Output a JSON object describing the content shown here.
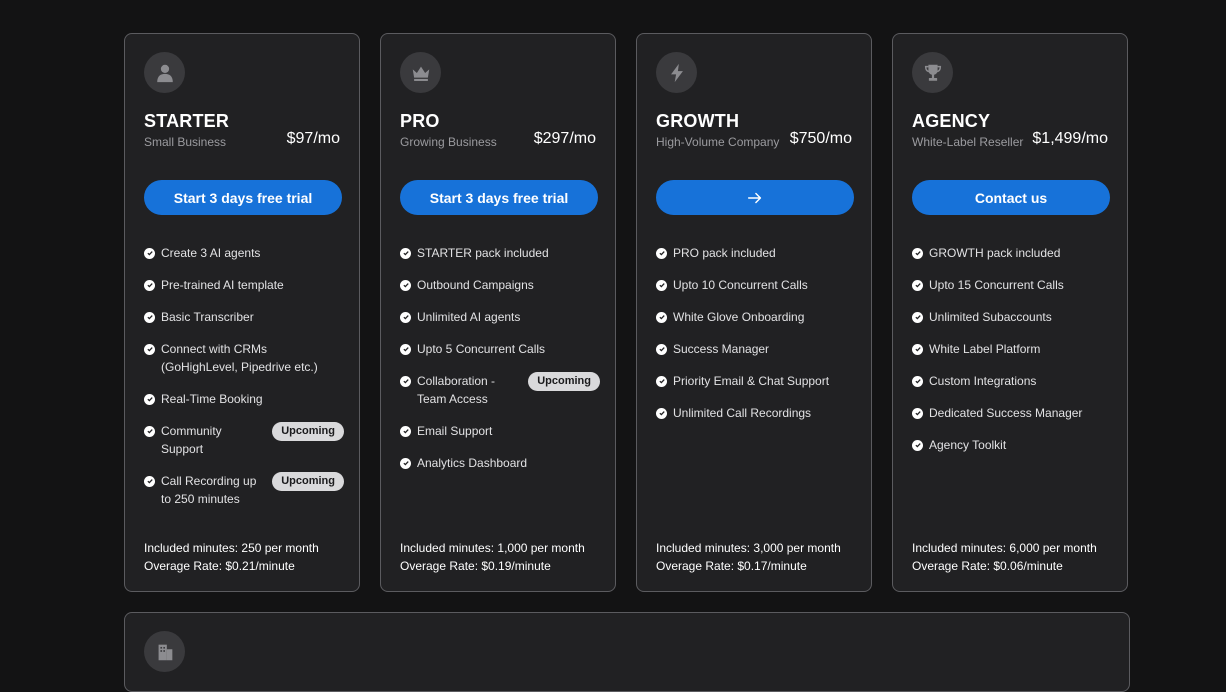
{
  "plans": [
    {
      "icon": "user-icon",
      "name": "STARTER",
      "subtitle": "Small Business",
      "price": "$97/mo",
      "cta_label": "Start 3 days free trial",
      "features": [
        {
          "text": "Create 3 AI agents"
        },
        {
          "text": "Pre-trained AI template"
        },
        {
          "text": "Basic Transcriber"
        },
        {
          "text": "Connect with CRMs (GoHighLevel, Pipedrive etc.)"
        },
        {
          "text": "Real-Time Booking"
        },
        {
          "text": "Community Support",
          "badge": "Upcoming"
        },
        {
          "text": "Call Recording up to 250 minutes",
          "badge": "Upcoming"
        }
      ],
      "included_minutes": "Included minutes: 250 per month",
      "overage_rate": "Overage Rate: $0.21/minute"
    },
    {
      "icon": "crown-icon",
      "name": "PRO",
      "subtitle": "Growing Business",
      "price": "$297/mo",
      "cta_label": "Start 3 days free trial",
      "features": [
        {
          "text": "STARTER pack included"
        },
        {
          "text": "Outbound Campaigns"
        },
        {
          "text": "Unlimited AI agents"
        },
        {
          "text": "Upto 5 Concurrent Calls"
        },
        {
          "text": "Collaboration - Team Access",
          "badge": "Upcoming"
        },
        {
          "text": "Email Support"
        },
        {
          "text": "Analytics Dashboard"
        }
      ],
      "included_minutes": "Included minutes: 1,000 per month",
      "overage_rate": "Overage Rate: $0.19/minute"
    },
    {
      "icon": "lightning-icon",
      "name": "GROWTH",
      "subtitle": "High-Volume Company",
      "price": "$750/mo",
      "cta_label": "",
      "cta_icon": "arrow-right-icon",
      "features": [
        {
          "text": "PRO pack included"
        },
        {
          "text": "Upto 10 Concurrent Calls"
        },
        {
          "text": "White Glove Onboarding"
        },
        {
          "text": "Success Manager"
        },
        {
          "text": "Priority Email & Chat Support"
        },
        {
          "text": "Unlimited Call Recordings"
        }
      ],
      "included_minutes": "Included minutes: 3,000 per month",
      "overage_rate": "Overage Rate: $0.17/minute"
    },
    {
      "icon": "trophy-icon",
      "name": "AGENCY",
      "subtitle": "White-Label Reseller",
      "price": "$1,499/mo",
      "cta_label": "Contact us",
      "features": [
        {
          "text": "GROWTH pack included"
        },
        {
          "text": "Upto 15 Concurrent Calls"
        },
        {
          "text": "Unlimited Subaccounts"
        },
        {
          "text": "White Label Platform"
        },
        {
          "text": "Custom Integrations"
        },
        {
          "text": "Dedicated Success Manager"
        },
        {
          "text": "Agency Toolkit"
        }
      ],
      "included_minutes": "Included minutes: 6,000 per month",
      "overage_rate": "Overage Rate: $0.06/minute"
    }
  ],
  "bottom_card": {
    "icon": "building-icon"
  },
  "colors": {
    "background": "#131314",
    "card": "#212123",
    "card_border": "#5b5b5f",
    "accent": "#1772d9",
    "badge_bg": "#d9d9db"
  }
}
